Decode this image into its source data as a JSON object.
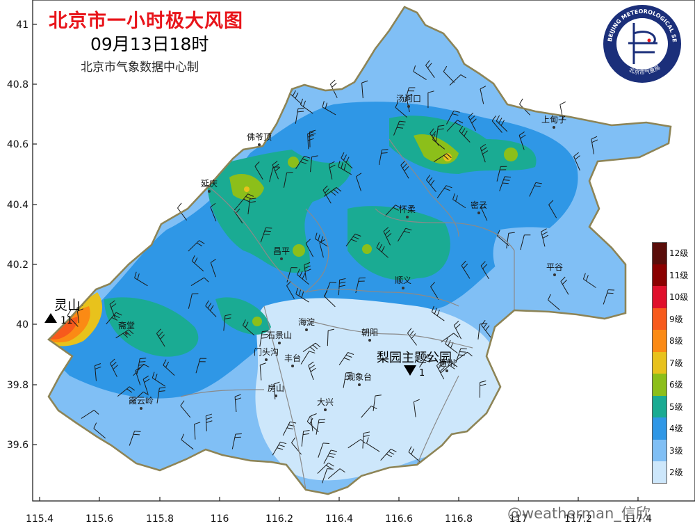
{
  "title": "北京市一小时极大风图",
  "time": "09月13日18时",
  "credit": "北京市气象数据中心制",
  "logo": {
    "ring_text": "BEIJING METEOROLOGICAL SERVICE",
    "bottom_text": "北京市气象局"
  },
  "watermark": "@weatherman_信欣",
  "axes": {
    "lat_ticks": [
      "41",
      "40.8",
      "40.6",
      "40.4",
      "40.2",
      "40",
      "39.8",
      "39.6"
    ],
    "lon_ticks": [
      "115.4",
      "115.6",
      "115.8",
      "116",
      "116.2",
      "116.4",
      "116.6",
      "116.8",
      "117",
      "117.2",
      "117.4"
    ]
  },
  "legend": [
    {
      "label": "12级",
      "color": "#5a0d0a"
    },
    {
      "label": "11级",
      "color": "#8b0000"
    },
    {
      "label": "10级",
      "color": "#e0102c"
    },
    {
      "label": "9级",
      "color": "#f75a1c"
    },
    {
      "label": "8级",
      "color": "#fb8a14"
    },
    {
      "label": "7级",
      "color": "#e8c21c"
    },
    {
      "label": "6级",
      "color": "#8cbf1a"
    },
    {
      "label": "5级",
      "color": "#1aab93"
    },
    {
      "label": "4级",
      "color": "#2f97e6"
    },
    {
      "label": "3级",
      "color": "#80bff5"
    },
    {
      "label": "2级",
      "color": "#cde7fb"
    }
  ],
  "places": [
    {
      "name": "汤河口"
    },
    {
      "name": "上甸子"
    },
    {
      "name": "佛爷顶"
    },
    {
      "name": "延庆"
    },
    {
      "name": "密云"
    },
    {
      "name": "怀柔"
    },
    {
      "name": "昌平"
    },
    {
      "name": "平谷"
    },
    {
      "name": "顺义"
    },
    {
      "name": "海淀"
    },
    {
      "name": "朝阳"
    },
    {
      "name": "石景山"
    },
    {
      "name": "门头沟"
    },
    {
      "name": "丰台"
    },
    {
      "name": "通州"
    },
    {
      "name": "观象台"
    },
    {
      "name": "房山"
    },
    {
      "name": "大兴"
    },
    {
      "name": "霞云岭"
    },
    {
      "name": "斋堂"
    }
  ],
  "markers": {
    "max": {
      "name": "灵山",
      "value": "11"
    },
    "min": {
      "name": "梨园主题公园",
      "value": "1"
    }
  }
}
